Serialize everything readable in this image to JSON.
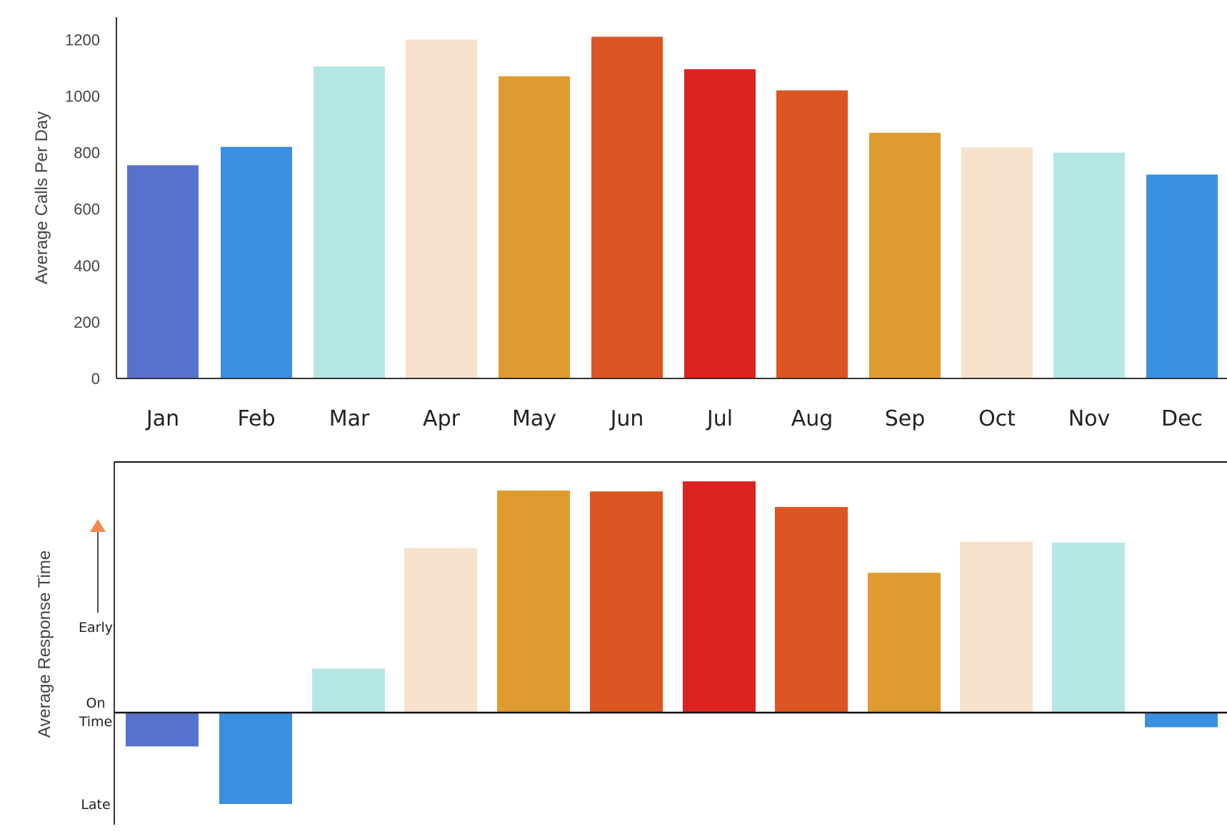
{
  "chart_data": [
    {
      "type": "bar",
      "categories": [
        "Jan",
        "Feb",
        "Mar",
        "Apr",
        "May",
        "Jun",
        "Jul",
        "Aug",
        "Sep",
        "Oct",
        "Nov",
        "Dec"
      ],
      "values": [
        755,
        820,
        1105,
        1200,
        1070,
        1210,
        1095,
        1020,
        870,
        818,
        800,
        722
      ],
      "colors": [
        "#5573CC",
        "#3B8FE0",
        "#B5E6E6",
        "#F8E2CC",
        "#DE9B30",
        "#DD5522",
        "#DD2222",
        "#DD5522",
        "#DE9B30",
        "#F8E2CC",
        "#B5E6E6",
        "#3B8FE0"
      ],
      "title": "",
      "xlabel": "",
      "ylabel": "Average Calls Per Day",
      "ylim": [
        0,
        1260
      ],
      "yticks": [
        0,
        200,
        400,
        600,
        800,
        1000,
        1200
      ],
      "grid": false
    },
    {
      "type": "bar",
      "categories": [
        "Jan",
        "Feb",
        "Mar",
        "Apr",
        "May",
        "Jun",
        "Jul",
        "Aug",
        "Sep",
        "Oct",
        "Nov",
        "Dec"
      ],
      "values": [
        -0.37,
        -1.0,
        0.48,
        1.8,
        2.43,
        2.42,
        2.53,
        2.25,
        1.53,
        1.87,
        1.86,
        -0.16
      ],
      "colors": [
        "#5573CC",
        "#3B8FE0",
        "#B5E6E6",
        "#F8E2CC",
        "#DE9B30",
        "#DD5522",
        "#DD2222",
        "#DD5522",
        "#DE9B30",
        "#F8E2CC",
        "#B5E6E6",
        "#3B8FE0"
      ],
      "title": "",
      "xlabel": "",
      "ylabel": "Average Response Time",
      "ylim": [
        -1.2,
        2.7
      ],
      "tick_labels": {
        "early": "Early",
        "on_time": [
          "On",
          "Time"
        ],
        "late": "Late"
      },
      "arrow_color": "#F08A4B",
      "grid": false
    }
  ]
}
